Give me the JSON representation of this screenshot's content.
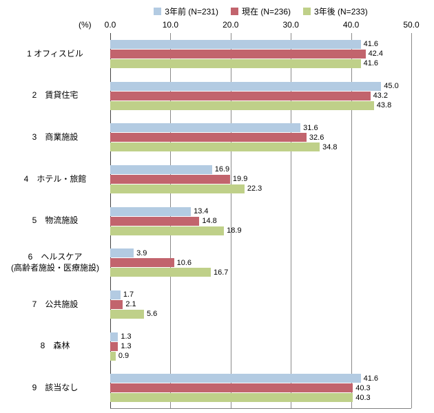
{
  "legend": [
    {
      "label": "3年前 (N=231)",
      "color": "#b3cbe2"
    },
    {
      "label": "現在 (N=236)",
      "color": "#c2646d"
    },
    {
      "label": "3年後 (N=233)",
      "color": "#bfd089"
    }
  ],
  "axis": {
    "unit_label": "(%)",
    "ticks": [
      "0.0",
      "10.0",
      "20.0",
      "30.0",
      "40.0",
      "50.0"
    ],
    "max": 50
  },
  "chart_data": {
    "type": "bar",
    "orientation": "horizontal",
    "title": "",
    "xlabel": "(%)",
    "ylabel": "",
    "xlim": [
      0,
      50
    ],
    "grid": true,
    "legend_position": "top",
    "categories": [
      "1 オフィスビル",
      "2　賃貸住宅",
      "3　商業施設",
      "4　ホテル・旅館",
      "5　物流施設",
      "6　ヘルスケア\n(高齢者施設・医療施設)",
      "7　公共施設",
      "8　森林",
      "9　該当なし"
    ],
    "series": [
      {
        "name": "3年前 (N=231)",
        "color": "#b3cbe2",
        "values": [
          41.6,
          45.0,
          31.6,
          16.9,
          13.4,
          3.9,
          1.7,
          1.3,
          41.6
        ]
      },
      {
        "name": "現在 (N=236)",
        "color": "#c2646d",
        "values": [
          42.4,
          43.2,
          32.6,
          19.9,
          14.8,
          10.6,
          2.1,
          1.3,
          40.3
        ]
      },
      {
        "name": "3年後 (N=233)",
        "color": "#bfd089",
        "values": [
          41.6,
          43.8,
          34.8,
          22.3,
          18.9,
          16.7,
          5.6,
          0.9,
          40.3
        ]
      }
    ]
  }
}
